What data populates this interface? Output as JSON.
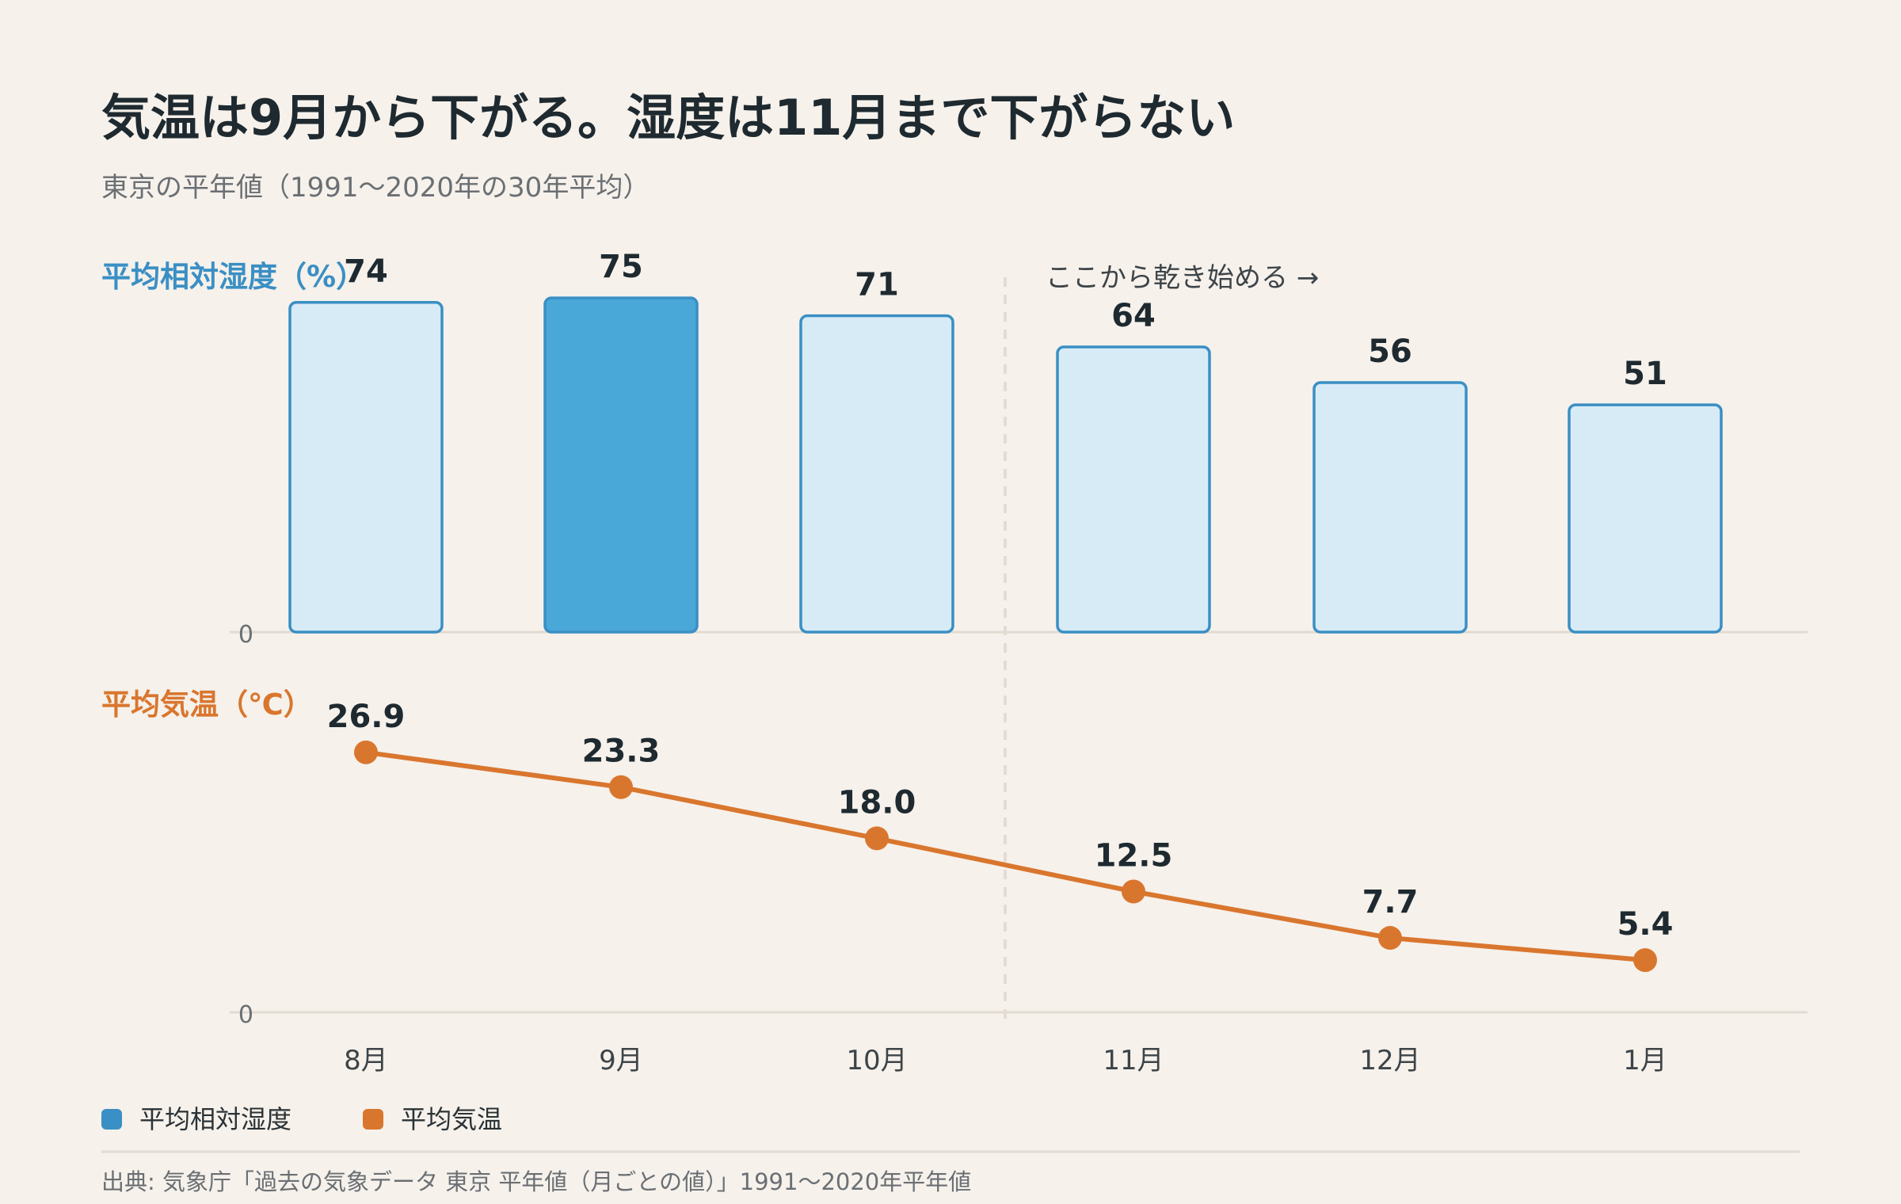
{
  "header": {
    "title": "気温は9月から下がる。湿度は11月まで下がらない",
    "subtitle": "東京の平年値（1991〜2020年の30年平均）"
  },
  "chart_data": [
    {
      "type": "bar",
      "label": "平均相対湿度（%）",
      "categories": [
        "8月",
        "9月",
        "10月",
        "11月",
        "12月",
        "1月"
      ],
      "values": [
        74,
        75,
        71,
        64,
        56,
        51
      ],
      "value_labels": [
        "74",
        "75",
        "71",
        "64",
        "56",
        "51"
      ],
      "highlight_index": 1,
      "ylim": [
        0,
        80
      ],
      "zero_label": "0",
      "colors": {
        "label": "#3a8fc4",
        "fill": "#d7ebf7",
        "highlight_fill": "#4aa8d8",
        "stroke": "#3a8fc4"
      }
    },
    {
      "type": "line",
      "label": "平均気温（℃）",
      "categories": [
        "8月",
        "9月",
        "10月",
        "11月",
        "12月",
        "1月"
      ],
      "values": [
        26.9,
        23.3,
        18.0,
        12.5,
        7.7,
        5.4
      ],
      "value_labels": [
        "26.9",
        "23.3",
        "18.0",
        "12.5",
        "7.7",
        "5.4"
      ],
      "ylim": [
        0,
        30
      ],
      "zero_label": "0",
      "colors": {
        "label": "#d9762e",
        "line": "#d9762e"
      }
    }
  ],
  "annotation": {
    "text": "ここから乾き始める →",
    "after_category_index": 2
  },
  "legend": [
    {
      "label": "平均相対湿度",
      "color": "#3a8fc4"
    },
    {
      "label": "平均気温",
      "color": "#d9762e"
    }
  ],
  "source": "出典: 気象庁「過去の気象データ 東京 平年値（月ごとの値）」1991〜2020年平年値"
}
